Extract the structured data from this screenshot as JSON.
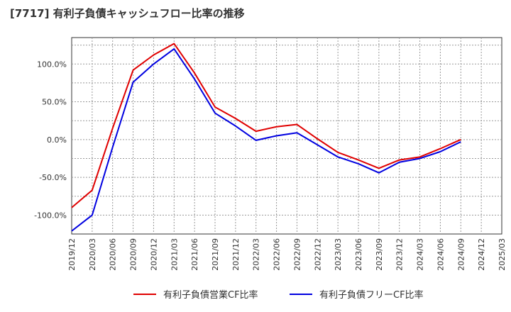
{
  "chart_data": {
    "type": "line",
    "title": "[7717]  有利子負債キャッシュフロー比率の推移",
    "xlabel": "",
    "ylabel": "",
    "ylim": [
      -125,
      135
    ],
    "y_ticks": [
      100,
      50,
      0,
      -50,
      -100
    ],
    "y_tick_labels": [
      "100.0%",
      "50.0%",
      "0.0%",
      "-50.0%",
      "-100.0%"
    ],
    "x": [
      "2019/12",
      "2020/03",
      "2020/06",
      "2020/09",
      "2020/12",
      "2021/03",
      "2021/06",
      "2021/09",
      "2021/12",
      "2022/03",
      "2022/06",
      "2022/09",
      "2022/12",
      "2023/03",
      "2023/06",
      "2023/09",
      "2023/12",
      "2024/03",
      "2024/06",
      "2024/09",
      "2024/12",
      "2025/03"
    ],
    "grid": true,
    "legend_position": "bottom",
    "series": [
      {
        "name": "有利子負債営業CF比率",
        "color": "#e00000",
        "values": [
          -90,
          -67,
          15,
          92,
          112,
          127,
          88,
          43,
          28,
          11,
          17,
          20,
          1,
          -17,
          -27,
          -38,
          -27,
          -23,
          -12,
          0,
          null,
          null
        ]
      },
      {
        "name": "有利子負債フリーCF比率",
        "color": "#0000e0",
        "values": [
          -121,
          -100,
          -10,
          76,
          100,
          120,
          80,
          35,
          18,
          -1,
          5,
          9,
          -7,
          -23,
          -32,
          -44,
          -30,
          -25,
          -16,
          -3,
          null,
          null
        ]
      }
    ]
  }
}
